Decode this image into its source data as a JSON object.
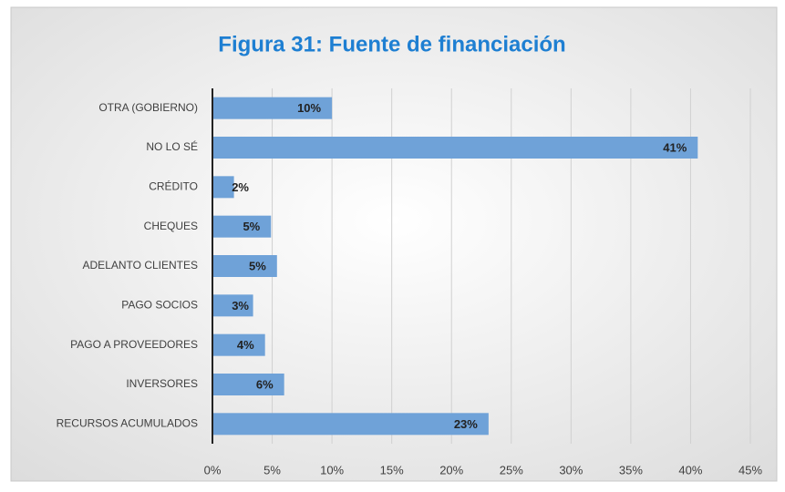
{
  "chart_data": {
    "type": "barh",
    "title": "Figura 31: Fuente de financiación",
    "categories": [
      "OTRA (GOBIERNO)",
      "NO LO SÉ",
      "CRÉDITO",
      "CHEQUES",
      "ADELANTO CLIENTES",
      "PAGO SOCIOS",
      "PAGO A PROVEEDORES",
      "INVERSORES",
      "RECURSOS ACUMULADOS"
    ],
    "values": [
      10,
      40.6,
      1.8,
      4.9,
      5.4,
      3.4,
      4.4,
      6,
      23.1
    ],
    "value_labels": [
      "10%",
      "41%",
      "2%",
      "5%",
      "5%",
      "3%",
      "4%",
      "6%",
      "23%"
    ],
    "color": "#6fa2d8",
    "xlim": [
      0,
      45
    ],
    "xticks": [
      {
        "value": 0,
        "label": "0%"
      },
      {
        "value": 5,
        "label": "5%"
      },
      {
        "value": 10,
        "label": "10%"
      },
      {
        "value": 15,
        "label": "15%"
      },
      {
        "value": 20,
        "label": "20%"
      },
      {
        "value": 25,
        "label": "25%"
      },
      {
        "value": 30,
        "label": "30%"
      },
      {
        "value": 35,
        "label": "35%"
      },
      {
        "value": 40,
        "label": "40%"
      },
      {
        "value": 45,
        "label": "45%"
      }
    ],
    "grid": true
  }
}
